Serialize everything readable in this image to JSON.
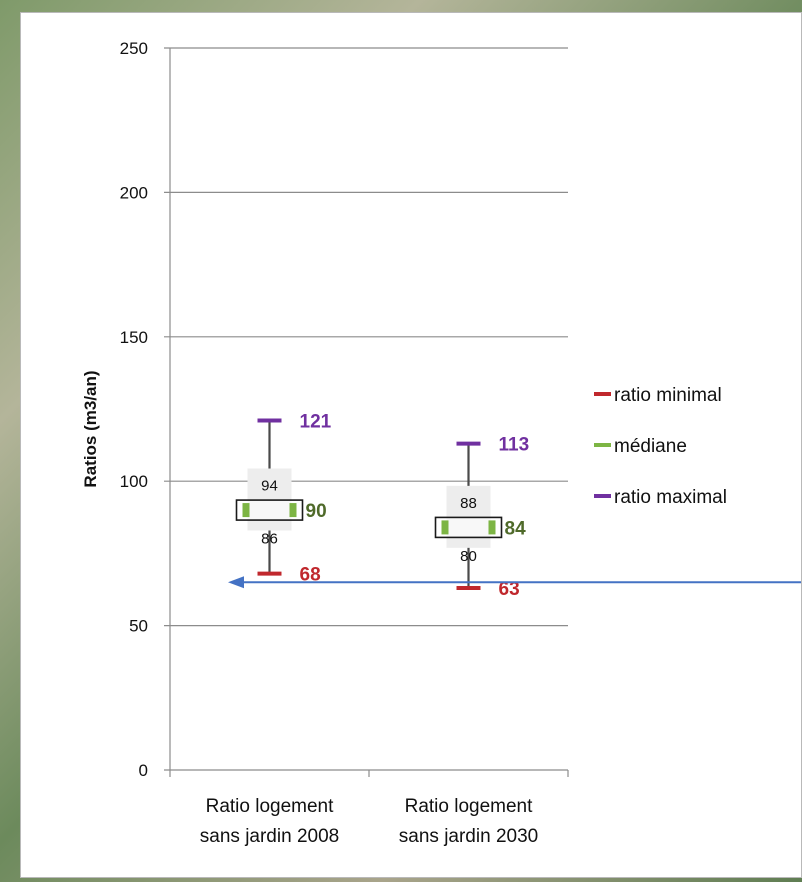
{
  "chart_data": {
    "type": "box",
    "ylabel": "Ratios (m3/an)",
    "ylim": [
      0,
      250
    ],
    "yticks": [
      0,
      50,
      100,
      150,
      200,
      250
    ],
    "grid": true,
    "categories": [
      "Ratio logement sans jardin 2008",
      "Ratio logement sans jardin 2030"
    ],
    "category_lines": [
      [
        "Ratio logement",
        "sans jardin 2008"
      ],
      [
        "Ratio logement",
        "sans jardin 2030"
      ]
    ],
    "boxes": [
      {
        "min": 68,
        "q1": 86,
        "median": 90,
        "q3": 94,
        "max": 121
      },
      {
        "min": 63,
        "q1": 80,
        "median": 84,
        "q3": 88,
        "max": 113
      }
    ],
    "legend": {
      "position": "right",
      "entries": [
        {
          "label": "ratio minimal",
          "color": "#c0282d"
        },
        {
          "label": "médiane",
          "color": "#7db544"
        },
        {
          "label": "ratio maximal",
          "color": "#7030a0"
        }
      ]
    },
    "annotation": {
      "type": "arrow",
      "target_y": 65
    },
    "colors": {
      "min": "#c0282d",
      "median_marker": "#7db544",
      "median_label": "#4f6a2a",
      "max": "#7030a0",
      "arrow": "#4472c4"
    }
  }
}
